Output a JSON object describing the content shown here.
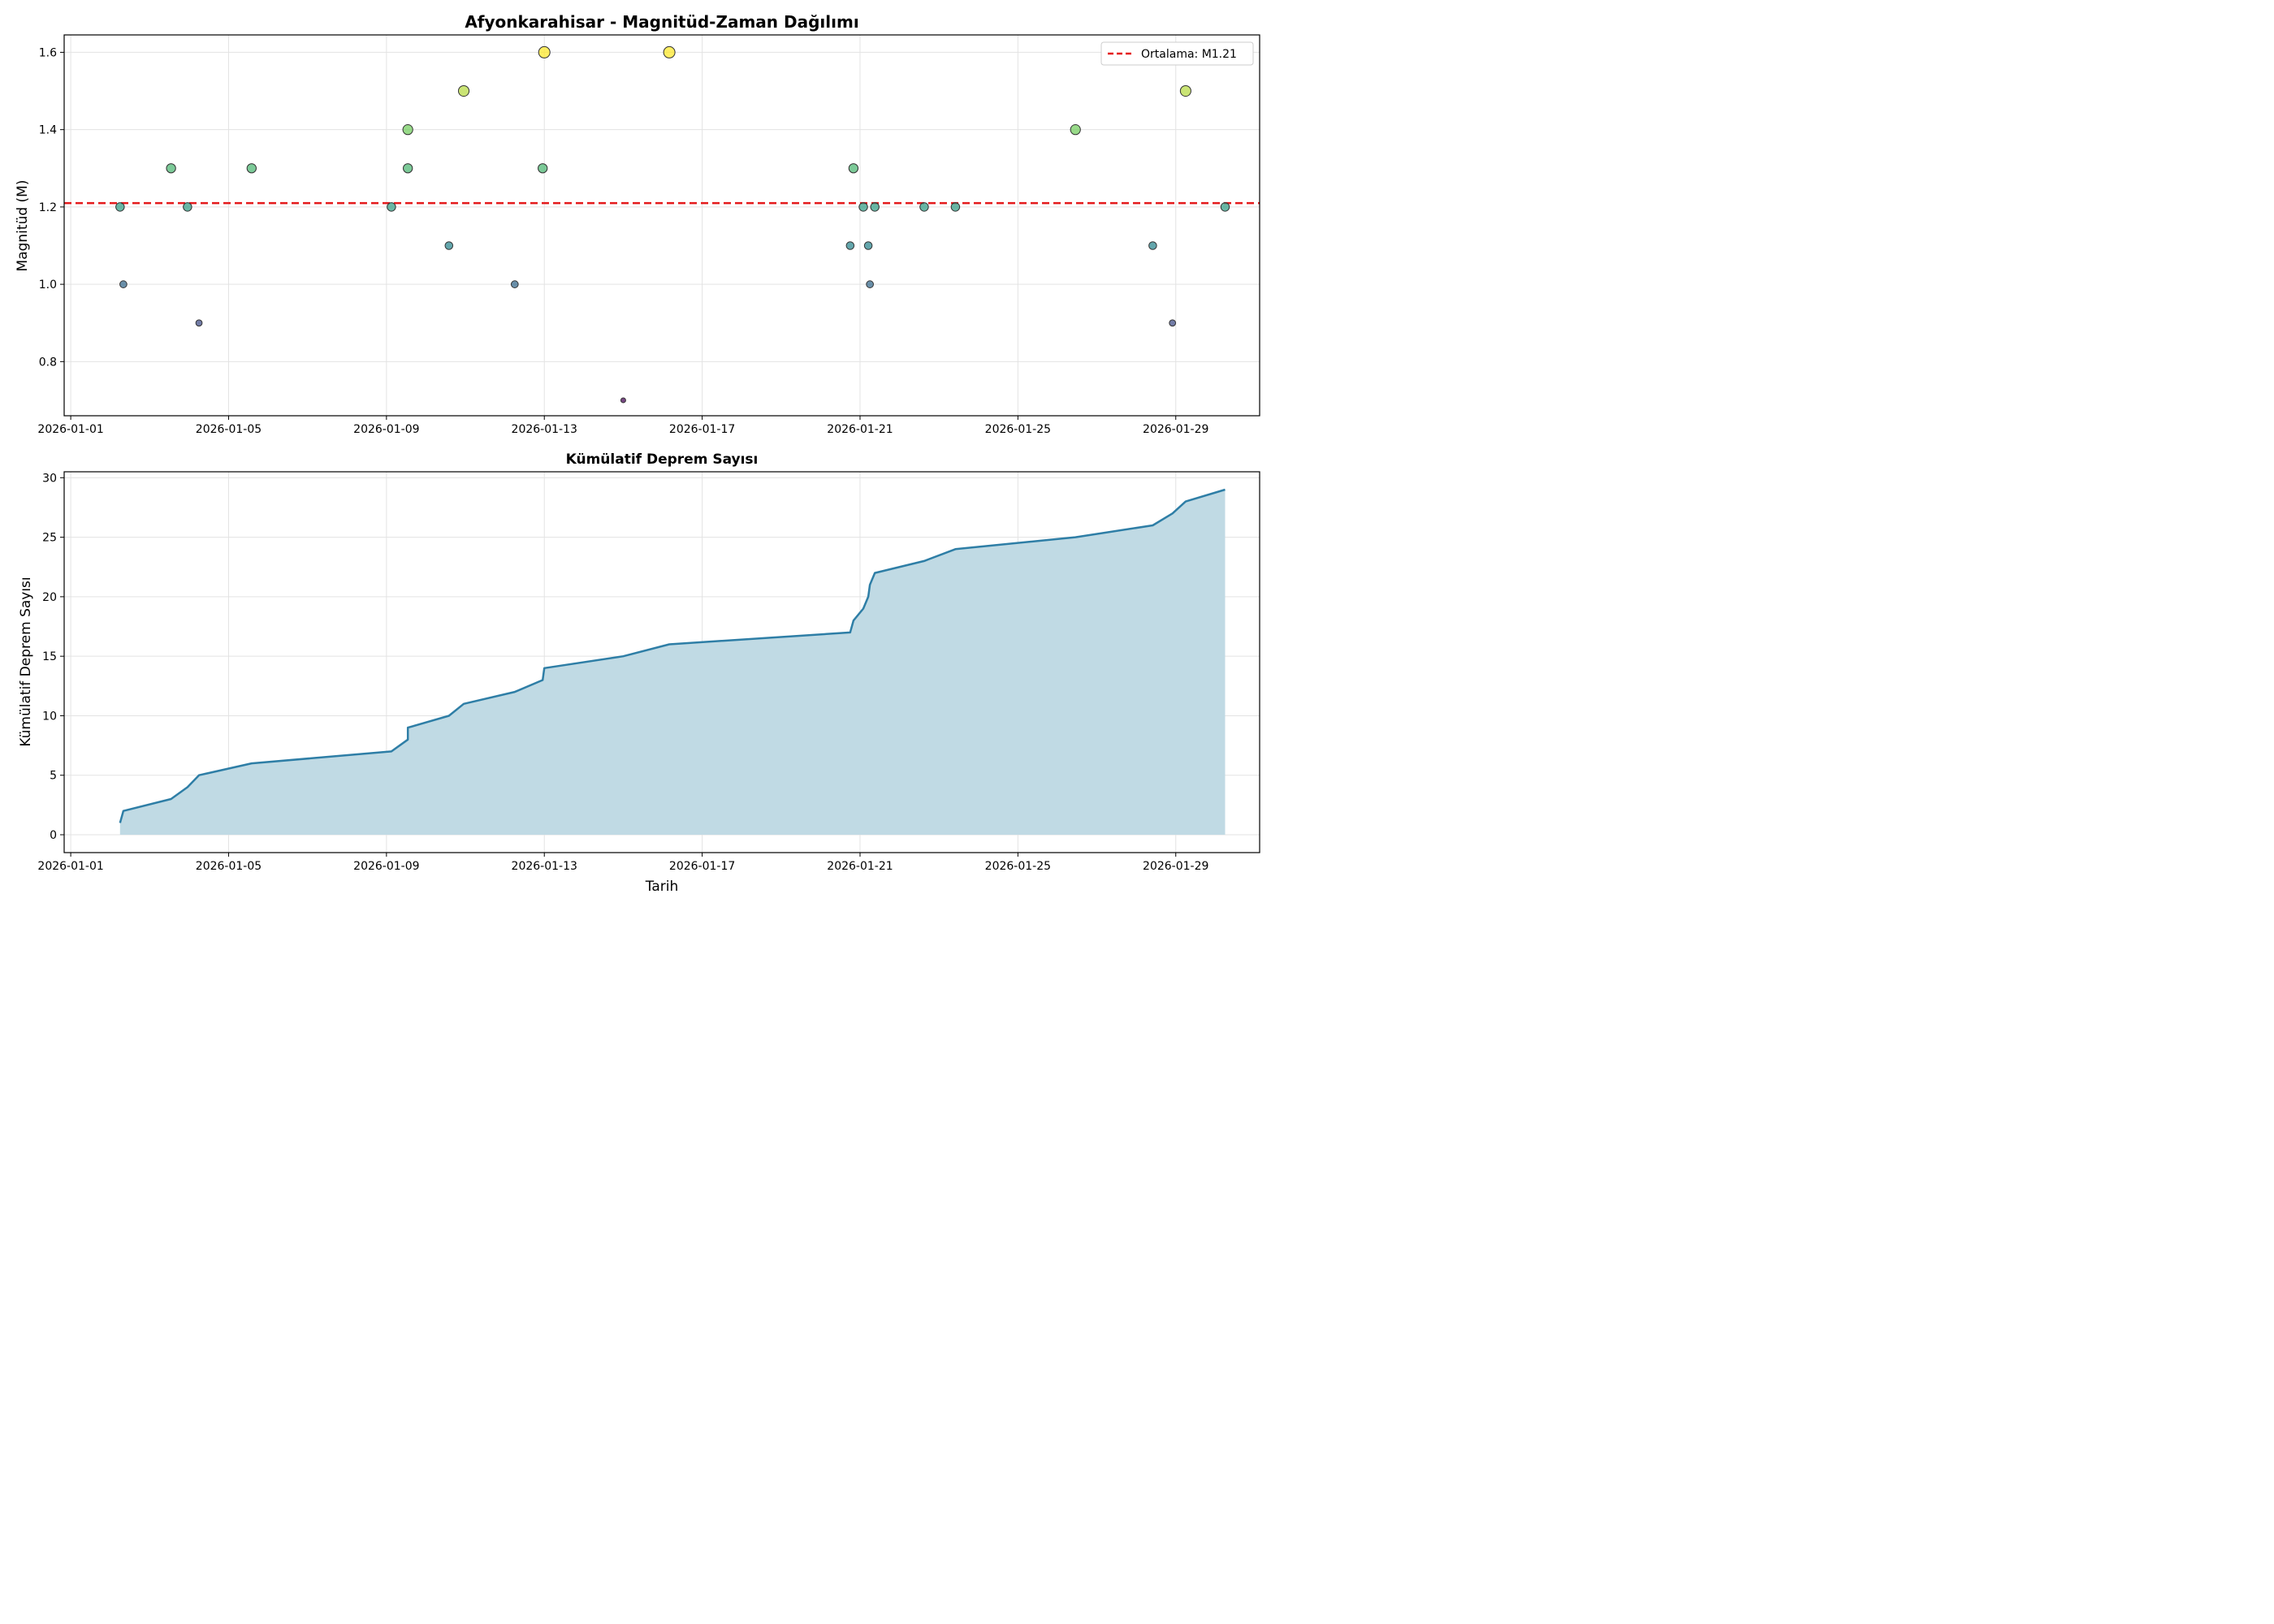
{
  "chart_data": [
    {
      "type": "scatter",
      "title": "Afyonkarahisar - Magnitüd-Zaman Dağılımı",
      "xlabel": "",
      "ylabel": "Magnitüd (M)",
      "x_ticks": [
        "2026-01-01",
        "2026-01-05",
        "2026-01-09",
        "2026-01-13",
        "2026-01-17",
        "2026-01-21",
        "2026-01-25",
        "2026-01-29"
      ],
      "y_ticks": [
        "0.8",
        "1.0",
        "1.2",
        "1.4",
        "1.6"
      ],
      "xlim": [
        "2025-12-31T20:00",
        "2026-01-31T03:00"
      ],
      "ylim": [
        0.66,
        1.645
      ],
      "grid": true,
      "legend": {
        "placement": "top-right",
        "entries": [
          "Ortalama: M1.21"
        ]
      },
      "mean_line": {
        "value": 1.21,
        "label": "Ortalama: M1.21",
        "color": "#e41a1c"
      },
      "points": [
        {
          "date": "2026-01-02T06:00",
          "mag": 1.2
        },
        {
          "date": "2026-01-02T08:00",
          "mag": 1.0
        },
        {
          "date": "2026-01-03T13:00",
          "mag": 1.3
        },
        {
          "date": "2026-01-03T23:00",
          "mag": 1.2
        },
        {
          "date": "2026-01-04T06:00",
          "mag": 0.9
        },
        {
          "date": "2026-01-05T14:00",
          "mag": 1.3
        },
        {
          "date": "2026-01-09T03:00",
          "mag": 1.2
        },
        {
          "date": "2026-01-09T13:00",
          "mag": 1.4
        },
        {
          "date": "2026-01-09T13:00",
          "mag": 1.3
        },
        {
          "date": "2026-01-10T14:00",
          "mag": 1.1
        },
        {
          "date": "2026-01-10T23:00",
          "mag": 1.5
        },
        {
          "date": "2026-01-12T06:00",
          "mag": 1.0
        },
        {
          "date": "2026-01-12T23:00",
          "mag": 1.3
        },
        {
          "date": "2026-01-13T00:00",
          "mag": 1.6
        },
        {
          "date": "2026-01-15T00:00",
          "mag": 0.7
        },
        {
          "date": "2026-01-16T04:00",
          "mag": 1.6
        },
        {
          "date": "2026-01-20T18:00",
          "mag": 1.1
        },
        {
          "date": "2026-01-20T20:00",
          "mag": 1.3
        },
        {
          "date": "2026-01-21T02:00",
          "mag": 1.2
        },
        {
          "date": "2026-01-21T05:00",
          "mag": 1.1
        },
        {
          "date": "2026-01-21T06:00",
          "mag": 1.0
        },
        {
          "date": "2026-01-21T09:00",
          "mag": 1.2
        },
        {
          "date": "2026-01-22T15:00",
          "mag": 1.2
        },
        {
          "date": "2026-01-23T10:00",
          "mag": 1.2
        },
        {
          "date": "2026-01-26T11:00",
          "mag": 1.4
        },
        {
          "date": "2026-01-28T10:00",
          "mag": 1.1
        },
        {
          "date": "2026-01-28T22:00",
          "mag": 0.9
        },
        {
          "date": "2026-01-29T06:00",
          "mag": 1.5
        },
        {
          "date": "2026-01-30T06:00",
          "mag": 1.2
        }
      ]
    },
    {
      "type": "area",
      "title": "Kümülatif Deprem Sayısı",
      "xlabel": "Tarih",
      "ylabel": "Kümülatif Deprem Sayısı",
      "x_ticks": [
        "2026-01-01",
        "2026-01-05",
        "2026-01-09",
        "2026-01-13",
        "2026-01-17",
        "2026-01-21",
        "2026-01-25",
        "2026-01-29"
      ],
      "y_ticks": [
        "0",
        "5",
        "10",
        "15",
        "20",
        "25",
        "30"
      ],
      "xlim": [
        "2025-12-31T20:00",
        "2026-01-31T03:00"
      ],
      "ylim": [
        -1.5,
        30.5
      ],
      "grid": true,
      "line_color": "#2e7ea6",
      "fill_color": "#c0dae4",
      "series": [
        {
          "date": "2026-01-02T06:00",
          "count": 1
        },
        {
          "date": "2026-01-02T08:00",
          "count": 2
        },
        {
          "date": "2026-01-03T13:00",
          "count": 3
        },
        {
          "date": "2026-01-03T23:00",
          "count": 4
        },
        {
          "date": "2026-01-04T06:00",
          "count": 5
        },
        {
          "date": "2026-01-05T14:00",
          "count": 6
        },
        {
          "date": "2026-01-09T03:00",
          "count": 7
        },
        {
          "date": "2026-01-09T13:00",
          "count": 8
        },
        {
          "date": "2026-01-09T13:00",
          "count": 9
        },
        {
          "date": "2026-01-10T14:00",
          "count": 10
        },
        {
          "date": "2026-01-10T23:00",
          "count": 11
        },
        {
          "date": "2026-01-12T06:00",
          "count": 12
        },
        {
          "date": "2026-01-12T23:00",
          "count": 13
        },
        {
          "date": "2026-01-13T00:00",
          "count": 14
        },
        {
          "date": "2026-01-15T00:00",
          "count": 15
        },
        {
          "date": "2026-01-16T04:00",
          "count": 16
        },
        {
          "date": "2026-01-20T18:00",
          "count": 17
        },
        {
          "date": "2026-01-20T20:00",
          "count": 18
        },
        {
          "date": "2026-01-21T02:00",
          "count": 19
        },
        {
          "date": "2026-01-21T05:00",
          "count": 20
        },
        {
          "date": "2026-01-21T06:00",
          "count": 21
        },
        {
          "date": "2026-01-21T09:00",
          "count": 22
        },
        {
          "date": "2026-01-22T15:00",
          "count": 23
        },
        {
          "date": "2026-01-23T10:00",
          "count": 24
        },
        {
          "date": "2026-01-26T11:00",
          "count": 25
        },
        {
          "date": "2026-01-28T10:00",
          "count": 26
        },
        {
          "date": "2026-01-28T22:00",
          "count": 27
        },
        {
          "date": "2026-01-29T06:00",
          "count": 28
        },
        {
          "date": "2026-01-30T06:00",
          "count": 29
        }
      ]
    }
  ]
}
